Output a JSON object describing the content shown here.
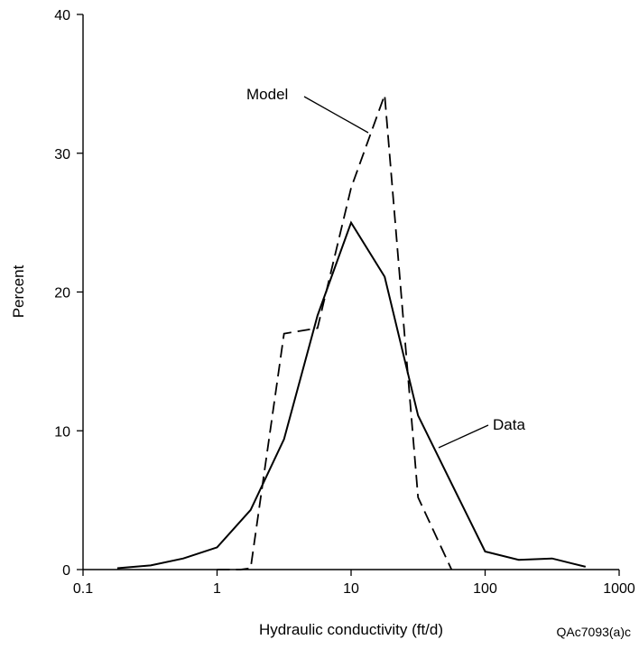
{
  "chart_data": {
    "type": "line",
    "xscale": "log",
    "xlim": [
      0.1,
      1000
    ],
    "ylim": [
      0,
      40
    ],
    "xlabel": "Hydraulic conductivity (ft/d)",
    "ylabel": "Percent",
    "grid": false,
    "x_ticks": [
      0.1,
      1,
      10,
      100,
      1000
    ],
    "x_tick_labels": [
      "0.1",
      "1",
      "10",
      "100",
      "1000"
    ],
    "y_ticks": [
      0,
      10,
      20,
      30,
      40
    ],
    "y_tick_labels": [
      "0",
      "10",
      "20",
      "30",
      "40"
    ],
    "series": [
      {
        "name": "Data",
        "style": "solid",
        "x": [
          0.18,
          0.32,
          0.56,
          1.0,
          1.78,
          3.16,
          5.62,
          10.0,
          17.8,
          31.6,
          56.2,
          100,
          178,
          316,
          562
        ],
        "y": [
          0.1,
          0.3,
          0.8,
          1.6,
          4.3,
          9.4,
          18.3,
          25.0,
          21.1,
          11.1,
          6.2,
          1.3,
          0.7,
          0.8,
          0.2
        ]
      },
      {
        "name": "Model",
        "style": "dashed",
        "x": [
          1.0,
          1.5,
          1.78,
          3.16,
          5.62,
          10.0,
          17.8,
          31.6,
          56.2
        ],
        "y": [
          0.0,
          0.0,
          0.1,
          17.0,
          17.4,
          27.5,
          34.2,
          5.2,
          0.0
        ]
      }
    ],
    "annotations": [
      {
        "text": "Model",
        "for_series": "Model"
      },
      {
        "text": "Data",
        "for_series": "Data"
      }
    ],
    "figure_id": "QAc7093(a)c"
  }
}
